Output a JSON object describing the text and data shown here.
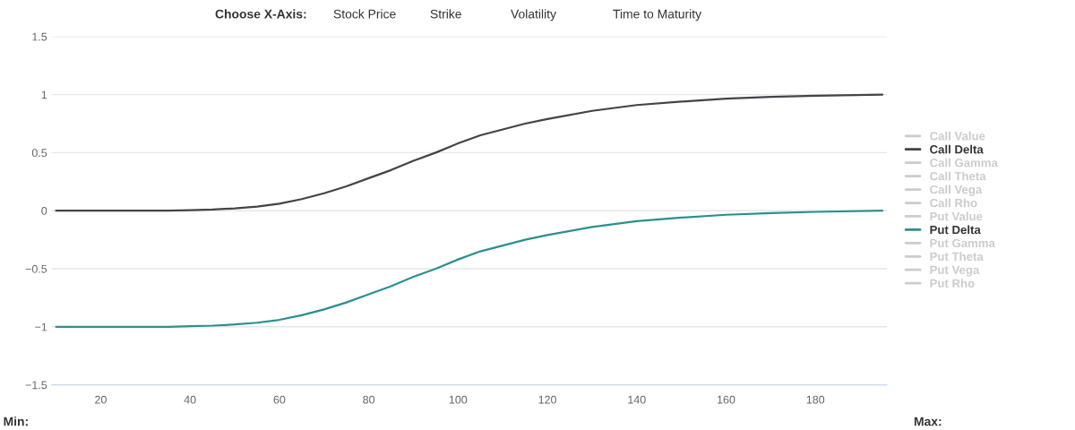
{
  "chart_data": {
    "type": "line",
    "x": [
      10,
      20,
      30,
      35,
      40,
      45,
      50,
      55,
      60,
      65,
      70,
      75,
      80,
      85,
      90,
      95,
      100,
      105,
      110,
      115,
      120,
      130,
      140,
      150,
      160,
      170,
      180,
      195
    ],
    "series": [
      {
        "name": "Call Value",
        "color": "#cccccc",
        "values": [
          null,
          null,
          null,
          null,
          null,
          null,
          null,
          null,
          null,
          null,
          null,
          null,
          null,
          null,
          null,
          null,
          null,
          null,
          null,
          null,
          null,
          null,
          null,
          null,
          null,
          null,
          null,
          null
        ]
      },
      {
        "name": "Call Delta",
        "color": "#434348",
        "values": [
          0,
          0,
          0,
          0,
          0.005,
          0.01,
          0.02,
          0.035,
          0.06,
          0.1,
          0.15,
          0.21,
          0.28,
          0.35,
          0.43,
          0.5,
          0.58,
          0.65,
          0.7,
          0.75,
          0.79,
          0.86,
          0.91,
          0.94,
          0.965,
          0.98,
          0.99,
          1.0
        ]
      },
      {
        "name": "Call Gamma",
        "color": "#cccccc",
        "values": [
          null,
          null,
          null,
          null,
          null,
          null,
          null,
          null,
          null,
          null,
          null,
          null,
          null,
          null,
          null,
          null,
          null,
          null,
          null,
          null,
          null,
          null,
          null,
          null,
          null,
          null,
          null,
          null
        ]
      },
      {
        "name": "Call Theta",
        "color": "#cccccc",
        "values": [
          null,
          null,
          null,
          null,
          null,
          null,
          null,
          null,
          null,
          null,
          null,
          null,
          null,
          null,
          null,
          null,
          null,
          null,
          null,
          null,
          null,
          null,
          null,
          null,
          null,
          null,
          null,
          null
        ]
      },
      {
        "name": "Call Vega",
        "color": "#cccccc",
        "values": [
          null,
          null,
          null,
          null,
          null,
          null,
          null,
          null,
          null,
          null,
          null,
          null,
          null,
          null,
          null,
          null,
          null,
          null,
          null,
          null,
          null,
          null,
          null,
          null,
          null,
          null,
          null,
          null
        ]
      },
      {
        "name": "Call Rho",
        "color": "#cccccc",
        "values": [
          null,
          null,
          null,
          null,
          null,
          null,
          null,
          null,
          null,
          null,
          null,
          null,
          null,
          null,
          null,
          null,
          null,
          null,
          null,
          null,
          null,
          null,
          null,
          null,
          null,
          null,
          null,
          null
        ]
      },
      {
        "name": "Put Value",
        "color": "#cccccc",
        "values": [
          null,
          null,
          null,
          null,
          null,
          null,
          null,
          null,
          null,
          null,
          null,
          null,
          null,
          null,
          null,
          null,
          null,
          null,
          null,
          null,
          null,
          null,
          null,
          null,
          null,
          null,
          null,
          null
        ]
      },
      {
        "name": "Put Delta",
        "color": "#2b908f",
        "values": [
          -1,
          -1,
          -1,
          -1,
          -0.995,
          -0.99,
          -0.98,
          -0.965,
          -0.94,
          -0.9,
          -0.85,
          -0.79,
          -0.72,
          -0.65,
          -0.57,
          -0.5,
          -0.42,
          -0.35,
          -0.3,
          -0.25,
          -0.21,
          -0.14,
          -0.09,
          -0.06,
          -0.035,
          -0.02,
          -0.01,
          0
        ]
      },
      {
        "name": "Put Gamma",
        "color": "#cccccc",
        "values": [
          null,
          null,
          null,
          null,
          null,
          null,
          null,
          null,
          null,
          null,
          null,
          null,
          null,
          null,
          null,
          null,
          null,
          null,
          null,
          null,
          null,
          null,
          null,
          null,
          null,
          null,
          null,
          null
        ]
      },
      {
        "name": "Put Theta",
        "color": "#cccccc",
        "values": [
          null,
          null,
          null,
          null,
          null,
          null,
          null,
          null,
          null,
          null,
          null,
          null,
          null,
          null,
          null,
          null,
          null,
          null,
          null,
          null,
          null,
          null,
          null,
          null,
          null,
          null,
          null,
          null
        ]
      },
      {
        "name": "Put Vega",
        "color": "#cccccc",
        "values": [
          null,
          null,
          null,
          null,
          null,
          null,
          null,
          null,
          null,
          null,
          null,
          null,
          null,
          null,
          null,
          null,
          null,
          null,
          null,
          null,
          null,
          null,
          null,
          null,
          null,
          null,
          null,
          null
        ]
      },
      {
        "name": "Put Rho",
        "color": "#cccccc",
        "values": [
          null,
          null,
          null,
          null,
          null,
          null,
          null,
          null,
          null,
          null,
          null,
          null,
          null,
          null,
          null,
          null,
          null,
          null,
          null,
          null,
          null,
          null,
          null,
          null,
          null,
          null,
          null,
          null
        ]
      }
    ],
    "xlim": [
      9,
      196
    ],
    "xticks": [
      20,
      40,
      60,
      80,
      100,
      120,
      140,
      160,
      180
    ],
    "ylim": [
      -1.5,
      1.5
    ],
    "yticks": [
      {
        "value": -1.5,
        "label": "−1.5"
      },
      {
        "value": -1,
        "label": "−1"
      },
      {
        "value": -0.5,
        "label": "−0.5"
      },
      0,
      0.5,
      1,
      1.5
    ],
    "grid": "y",
    "legend": "right",
    "marker": "none",
    "line_style": "solid",
    "annotations": [
      "Choose X-Axis:",
      "Stock Price",
      "Strike",
      "Volatility",
      "Time to Maturity",
      "Min:",
      "Max:"
    ]
  }
}
